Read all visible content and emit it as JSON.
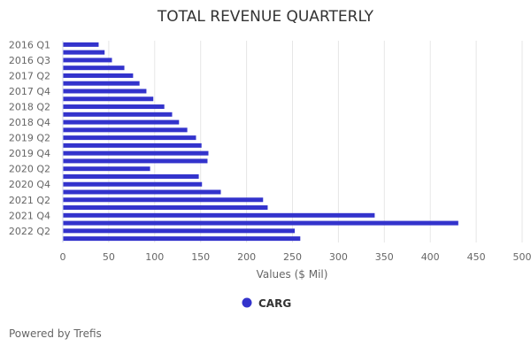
{
  "chart_data": {
    "type": "bar",
    "orientation": "horizontal",
    "title": "TOTAL REVENUE QUARTERLY",
    "xlabel": "Values ($ Mil)",
    "ylabel": "",
    "xlim": [
      0,
      500
    ],
    "xticks": [
      0,
      50,
      100,
      150,
      200,
      250,
      300,
      350,
      400,
      450,
      500
    ],
    "grid": true,
    "legend_placement": "bottom",
    "categories": [
      "2016 Q1",
      "2016 Q2",
      "2016 Q3",
      "2016 Q4",
      "2017 Q2",
      "2017 Q3",
      "2017 Q4",
      "2018 Q1",
      "2018 Q2",
      "2018 Q3",
      "2018 Q4",
      "2019 Q1",
      "2019 Q2",
      "2019 Q3",
      "2019 Q4",
      "2020 Q1",
      "2020 Q2",
      "2020 Q3",
      "2020 Q4",
      "2021 Q1",
      "2021 Q2",
      "2021 Q3",
      "2021 Q4",
      "2022 Q1",
      "2022 Q2",
      "2022 Q3"
    ],
    "shown_category_labels": [
      "2016 Q1",
      "2016 Q3",
      "2017 Q2",
      "2017 Q4",
      "2018 Q2",
      "2018 Q4",
      "2019 Q2",
      "2019 Q4",
      "2020 Q2",
      "2020 Q4",
      "2021 Q2",
      "2021 Q4",
      "2022 Q2"
    ],
    "series": [
      {
        "name": "CARG",
        "color": "#3333cc",
        "values": [
          38.5,
          45,
          53,
          66.5,
          76,
          83,
          90.5,
          98,
          110,
          118.5,
          126,
          135,
          144.5,
          150.5,
          158,
          157,
          94.5,
          147.5,
          151,
          171.5,
          217.5,
          222.5,
          339,
          430,
          252,
          258
        ]
      }
    ]
  },
  "footer": {
    "credit": "Powered by Trefis"
  }
}
